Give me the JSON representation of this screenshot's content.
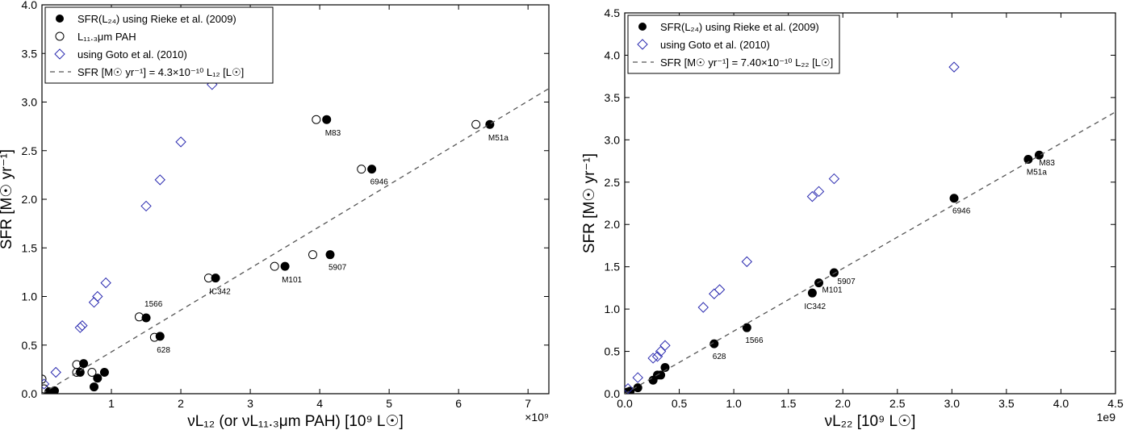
{
  "chart_data": [
    {
      "type": "scatter",
      "xlabel": "νL₁₂ (or νL₁₁.₃μm PAH) [10⁹ L☉]",
      "ylabel": "SFR [M☉ yr⁻¹]",
      "x_offset_label": "×10⁹",
      "xlim": [
        0,
        7.3
      ],
      "ylim": [
        0,
        4.0
      ],
      "xticks": [
        1,
        2,
        3,
        4,
        5,
        6,
        7
      ],
      "yticks": [
        0.0,
        0.5,
        1.0,
        1.5,
        2.0,
        2.5,
        3.0,
        3.5,
        4.0
      ],
      "ytick_labels": [
        "0.0",
        "0.5",
        "1.0",
        "1.5",
        "2.0",
        "2.5",
        "3.0",
        "3.5",
        "4.0"
      ],
      "legend_position": "upper-left",
      "series": [
        {
          "name": "SFR(L₂₄) using Rieke et al. (2009)",
          "marker": "filled-circle",
          "color": "#000000",
          "points": [
            [
              0.1,
              0.02
            ],
            [
              0.18,
              0.03
            ],
            [
              0.55,
              0.22
            ],
            [
              0.6,
              0.31
            ],
            [
              0.75,
              0.07
            ],
            [
              0.8,
              0.16
            ],
            [
              0.9,
              0.22
            ],
            [
              1.5,
              0.78
            ],
            [
              1.7,
              0.59
            ],
            [
              2.5,
              1.19
            ],
            [
              3.5,
              1.31
            ],
            [
              4.15,
              1.43
            ],
            [
              4.1,
              2.82
            ],
            [
              4.75,
              2.31
            ],
            [
              6.45,
              2.77
            ]
          ]
        },
        {
          "name": "L₁₁.₃μm PAH",
          "marker": "open-circle",
          "color": "#000000",
          "points": [
            [
              0.0,
              0.15
            ],
            [
              0.03,
              0.05
            ],
            [
              0.5,
              0.3
            ],
            [
              0.5,
              0.22
            ],
            [
              0.72,
              0.22
            ],
            [
              1.4,
              0.79
            ],
            [
              1.62,
              0.58
            ],
            [
              2.4,
              1.19
            ],
            [
              3.35,
              1.31
            ],
            [
              3.9,
              1.43
            ],
            [
              3.95,
              2.82
            ],
            [
              4.6,
              2.31
            ],
            [
              6.25,
              2.77
            ]
          ]
        },
        {
          "name": "using Goto et al. (2010)",
          "marker": "open-diamond",
          "color": "#2b2bb0",
          "points": [
            [
              0.03,
              0.1
            ],
            [
              0.2,
              0.22
            ],
            [
              0.55,
              0.68
            ],
            [
              0.58,
              0.7
            ],
            [
              0.75,
              0.94
            ],
            [
              0.8,
              1.0
            ],
            [
              0.92,
              1.14
            ],
            [
              1.5,
              1.93
            ],
            [
              1.7,
              2.2
            ],
            [
              2.0,
              2.59
            ],
            [
              2.45,
              3.18
            ]
          ]
        },
        {
          "name": "SFR [M☉ yr⁻¹] = 4.3×10⁻¹⁰ L₁₂ [L☉]",
          "style": "dashed-line",
          "color": "#555555",
          "slope": 0.43
        }
      ],
      "annotations": [
        {
          "text": "M83",
          "x": 4.1,
          "y": 2.82
        },
        {
          "text": "M51a",
          "x": 6.45,
          "y": 2.77
        },
        {
          "text": "6946",
          "x": 4.75,
          "y": 2.31
        },
        {
          "text": "5907",
          "x": 4.15,
          "y": 1.43
        },
        {
          "text": "M101",
          "x": 3.5,
          "y": 1.31
        },
        {
          "text": "IC342",
          "x": 2.5,
          "y": 1.19
        },
        {
          "text": "1566",
          "x": 1.5,
          "y": 0.78
        },
        {
          "text": "628",
          "x": 1.7,
          "y": 0.59
        }
      ]
    },
    {
      "type": "scatter",
      "xlabel": "νL₂₂ [10⁹ L☉]",
      "ylabel": "SFR [M☉ yr⁻¹]",
      "x_offset_label": "1e9",
      "xlim": [
        0,
        4.5
      ],
      "ylim": [
        0,
        4.5
      ],
      "xticks": [
        0.0,
        0.5,
        1.0,
        1.5,
        2.0,
        2.5,
        3.0,
        3.5,
        4.0,
        4.5
      ],
      "xtick_labels": [
        "0.0",
        "0.5",
        "1.0",
        "1.5",
        "2.0",
        "2.5",
        "3.0",
        "3.5",
        "4.0",
        "4.5"
      ],
      "yticks": [
        0.0,
        0.5,
        1.0,
        1.5,
        2.0,
        2.5,
        3.0,
        3.5,
        4.0,
        4.5
      ],
      "ytick_labels": [
        "0.0",
        "0.5",
        "1.0",
        "1.5",
        "2.0",
        "2.5",
        "3.0",
        "3.5",
        "4.0",
        "4.5"
      ],
      "legend_position": "upper-left",
      "series": [
        {
          "name": "SFR(L₂₄) using Rieke et al. (2009)",
          "marker": "filled-circle",
          "color": "#000000",
          "points": [
            [
              0.03,
              0.02
            ],
            [
              0.05,
              0.03
            ],
            [
              0.12,
              0.07
            ],
            [
              0.26,
              0.16
            ],
            [
              0.3,
              0.22
            ],
            [
              0.33,
              0.22
            ],
            [
              0.37,
              0.31
            ],
            [
              0.82,
              0.59
            ],
            [
              1.12,
              0.78
            ],
            [
              1.72,
              1.19
            ],
            [
              1.78,
              1.31
            ],
            [
              1.92,
              1.43
            ],
            [
              3.02,
              2.31
            ],
            [
              3.7,
              2.77
            ],
            [
              3.8,
              2.82
            ]
          ]
        },
        {
          "name": "using Goto et al. (2010)",
          "marker": "open-diamond",
          "color": "#2b2bb0",
          "points": [
            [
              0.03,
              0.06
            ],
            [
              0.12,
              0.19
            ],
            [
              0.26,
              0.42
            ],
            [
              0.3,
              0.44
            ],
            [
              0.33,
              0.5
            ],
            [
              0.37,
              0.57
            ],
            [
              0.72,
              1.02
            ],
            [
              0.82,
              1.18
            ],
            [
              0.87,
              1.23
            ],
            [
              1.12,
              1.56
            ],
            [
              1.72,
              2.33
            ],
            [
              1.78,
              2.39
            ],
            [
              1.92,
              2.54
            ],
            [
              3.02,
              3.86
            ]
          ]
        },
        {
          "name": "SFR [M☉ yr⁻¹] = 7.40×10⁻¹⁰ L₂₂ [L☉]",
          "style": "dashed-line",
          "color": "#555555",
          "slope": 0.74
        }
      ],
      "annotations": [
        {
          "text": "M83",
          "x": 3.8,
          "y": 2.82
        },
        {
          "text": "M51a",
          "x": 3.7,
          "y": 2.77
        },
        {
          "text": "6946",
          "x": 3.02,
          "y": 2.31
        },
        {
          "text": "5907",
          "x": 1.92,
          "y": 1.43
        },
        {
          "text": "M101",
          "x": 1.78,
          "y": 1.31
        },
        {
          "text": "IC342",
          "x": 1.72,
          "y": 1.19
        },
        {
          "text": "1566",
          "x": 1.12,
          "y": 0.78
        },
        {
          "text": "628",
          "x": 0.82,
          "y": 0.59
        }
      ]
    }
  ]
}
